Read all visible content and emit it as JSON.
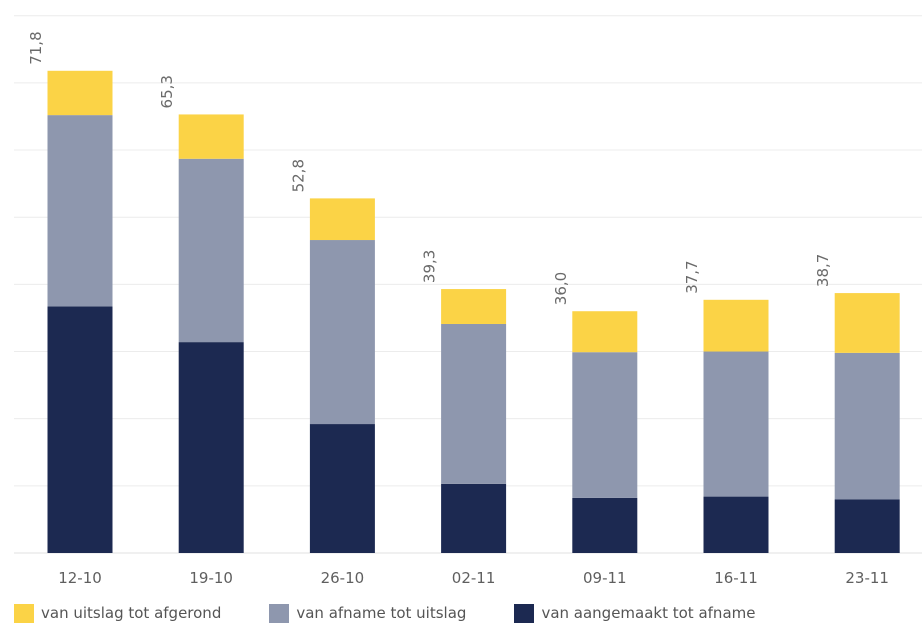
{
  "chart_data": {
    "type": "bar",
    "stacked": true,
    "categories": [
      "12-10",
      "19-10",
      "26-10",
      "02-11",
      "09-11",
      "16-11",
      "23-11"
    ],
    "series": [
      {
        "name": "van aangemaakt tot afname",
        "color": "#1c2951",
        "values": [
          36.7,
          31.4,
          19.2,
          10.3,
          8.2,
          8.4,
          8.0
        ]
      },
      {
        "name": "van afname tot uitslag",
        "color": "#8e97ae",
        "values": [
          28.5,
          27.3,
          27.4,
          23.8,
          21.7,
          21.6,
          21.8
        ]
      },
      {
        "name": "van uitslag tot afgerond",
        "color": "#fbd346",
        "values": [
          6.6,
          6.6,
          6.2,
          5.2,
          6.1,
          7.7,
          8.9
        ]
      }
    ],
    "totals": [
      "71,8",
      "65,3",
      "52,8",
      "39,3",
      "36,0",
      "37,7",
      "38,7"
    ],
    "ylim": [
      0,
      81
    ],
    "ygrid_step": 10,
    "grid": true,
    "legend": [
      "van uitslag tot afgerond",
      "van afname tot uitslag",
      "van aangemaakt tot afname"
    ],
    "legend_position": "bottom"
  }
}
